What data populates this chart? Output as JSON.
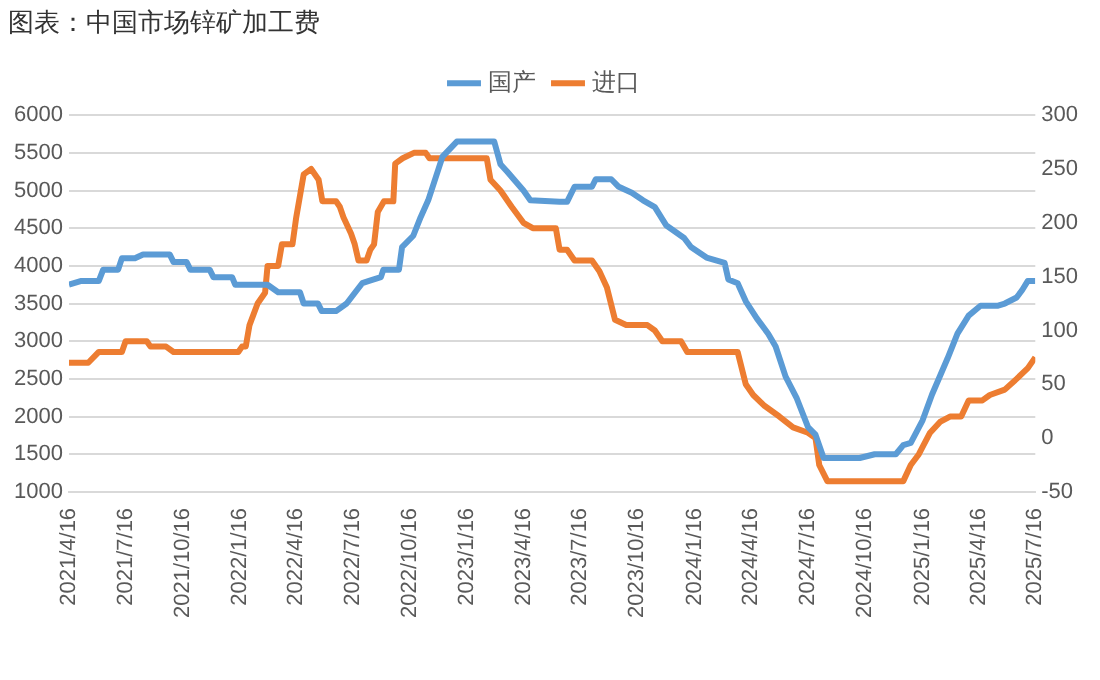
{
  "chart_data": {
    "type": "line",
    "title": "图表：中国市场锌矿加工费",
    "xlim": [
      "2021-04-16",
      "2025-07-16"
    ],
    "xticks": [
      {
        "value": "2021-04-16",
        "label": "2021/4/16"
      },
      {
        "value": "2021-07-16",
        "label": "2021/7/16"
      },
      {
        "value": "2021-10-16",
        "label": "2021/10/16"
      },
      {
        "value": "2022-01-16",
        "label": "2022/1/16"
      },
      {
        "value": "2022-04-16",
        "label": "2022/4/16"
      },
      {
        "value": "2022-07-16",
        "label": "2022/7/16"
      },
      {
        "value": "2022-10-16",
        "label": "2022/10/16"
      },
      {
        "value": "2023-01-16",
        "label": "2023/1/16"
      },
      {
        "value": "2023-04-16",
        "label": "2023/4/16"
      },
      {
        "value": "2023-07-16",
        "label": "2023/7/16"
      },
      {
        "value": "2023-10-16",
        "label": "2023/10/16"
      },
      {
        "value": "2024-01-16",
        "label": "2024/1/16"
      },
      {
        "value": "2024-04-16",
        "label": "2024/4/16"
      },
      {
        "value": "2024-07-16",
        "label": "2024/7/16"
      },
      {
        "value": "2024-10-16",
        "label": "2024/10/16"
      },
      {
        "value": "2025-01-16",
        "label": "2025/1/16"
      },
      {
        "value": "2025-04-16",
        "label": "2025/4/16"
      },
      {
        "value": "2025-07-16",
        "label": "2025/7/16"
      }
    ],
    "ylim": [
      1000,
      6000
    ],
    "yticks": [
      1000,
      1500,
      2000,
      2500,
      3000,
      3500,
      4000,
      4500,
      5000,
      5500,
      6000
    ],
    "y2lim": [
      -50,
      300
    ],
    "y2ticks": [
      -50,
      0,
      50,
      100,
      150,
      200,
      250,
      300
    ],
    "grid": "y",
    "legend": "top",
    "marker": "none",
    "line_style": "solid",
    "series": [
      {
        "name": "国产",
        "color": "#5b9bd5",
        "x": [
          "2021-04-16",
          "2021-05-06",
          "2021-06-03",
          "2021-06-10",
          "2021-07-04",
          "2021-07-10",
          "2021-07-31",
          "2021-08-13",
          "2021-09-25",
          "2021-10-01",
          "2021-10-22",
          "2021-10-28",
          "2021-11-28",
          "2021-12-04",
          "2022-01-03",
          "2022-01-08",
          "2022-03-01",
          "2022-03-18",
          "2022-04-22",
          "2022-04-28",
          "2022-05-21",
          "2022-05-27",
          "2022-06-19",
          "2022-07-06",
          "2022-07-18",
          "2022-07-31",
          "2022-08-11",
          "2022-08-30",
          "2022-09-03",
          "2022-09-28",
          "2022-10-03",
          "2022-10-21",
          "2022-11-02",
          "2022-11-14",
          "2022-12-07",
          "2022-12-30",
          "2023-02-28",
          "2023-03-10",
          "2023-03-21",
          "2023-04-16",
          "2023-04-27",
          "2023-06-13",
          "2023-06-25",
          "2023-07-07",
          "2023-08-04",
          "2023-08-10",
          "2023-09-04",
          "2023-09-16",
          "2023-10-07",
          "2023-10-25",
          "2023-11-13",
          "2023-12-01",
          "2023-12-30",
          "2024-01-10",
          "2024-02-04",
          "2024-03-04",
          "2024-03-10",
          "2024-03-25",
          "2024-04-07",
          "2024-04-25",
          "2024-05-13",
          "2024-05-25",
          "2024-06-10",
          "2024-06-28",
          "2024-07-16",
          "2024-07-28",
          "2024-08-10",
          "2024-10-07",
          "2024-10-31",
          "2024-12-04",
          "2024-12-16",
          "2024-12-28",
          "2025-01-16",
          "2025-01-31",
          "2025-02-25",
          "2025-03-13",
          "2025-03-31",
          "2025-04-19",
          "2025-05-16",
          "2025-05-28",
          "2025-06-16",
          "2025-06-25",
          "2025-07-04",
          "2025-07-16"
        ],
        "values": [
          3750,
          3800,
          3800,
          3950,
          3950,
          4100,
          4100,
          4150,
          4150,
          4050,
          4050,
          3950,
          3950,
          3850,
          3850,
          3750,
          3750,
          3650,
          3650,
          3500,
          3500,
          3400,
          3400,
          3500,
          3630,
          3770,
          3800,
          3850,
          3950,
          3950,
          4250,
          4400,
          4650,
          4870,
          5450,
          5650,
          5650,
          5350,
          5250,
          5000,
          4870,
          4850,
          4850,
          5050,
          5050,
          5150,
          5150,
          5050,
          4970,
          4870,
          4780,
          4540,
          4370,
          4250,
          4110,
          4040,
          3820,
          3770,
          3530,
          3300,
          3100,
          2930,
          2530,
          2240,
          1860,
          1760,
          1450,
          1450,
          1500,
          1500,
          1620,
          1650,
          1950,
          2290,
          2770,
          3100,
          3340,
          3470,
          3470,
          3500,
          3580,
          3680,
          3800,
          3800
        ]
      },
      {
        "name": "进口",
        "color": "#ed7d31",
        "axis": "y2",
        "x": [
          "2021-04-16",
          "2021-05-17",
          "2021-06-03",
          "2021-07-10",
          "2021-07-16",
          "2021-08-19",
          "2021-08-25",
          "2021-09-19",
          "2021-10-01",
          "2022-01-13",
          "2022-01-19",
          "2022-01-25",
          "2022-01-31",
          "2022-02-13",
          "2022-02-25",
          "2022-03-01",
          "2022-03-18",
          "2022-03-24",
          "2022-04-10",
          "2022-04-16",
          "2022-04-28",
          "2022-05-10",
          "2022-05-22",
          "2022-05-28",
          "2022-06-19",
          "2022-06-25",
          "2022-07-01",
          "2022-07-13",
          "2022-07-19",
          "2022-07-25",
          "2022-08-07",
          "2022-08-13",
          "2022-08-19",
          "2022-08-25",
          "2022-09-04",
          "2022-09-19",
          "2022-09-22",
          "2022-10-04",
          "2022-10-22",
          "2022-11-10",
          "2022-11-16",
          "2023-02-16",
          "2023-02-22",
          "2023-03-10",
          "2023-03-28",
          "2023-04-16",
          "2023-05-01",
          "2023-06-07",
          "2023-06-13",
          "2023-06-25",
          "2023-07-07",
          "2023-08-04",
          "2023-08-16",
          "2023-08-28",
          "2023-09-10",
          "2023-09-28",
          "2023-11-01",
          "2023-11-13",
          "2023-11-25",
          "2023-12-25",
          "2024-01-04",
          "2024-03-25",
          "2024-04-07",
          "2024-04-19",
          "2024-05-07",
          "2024-05-31",
          "2024-06-22",
          "2024-07-16",
          "2024-07-28",
          "2024-08-03",
          "2024-08-16",
          "2024-12-16",
          "2024-12-28",
          "2025-01-10",
          "2025-01-28",
          "2025-02-13",
          "2025-03-01",
          "2025-03-19",
          "2025-03-31",
          "2025-04-22",
          "2025-05-04",
          "2025-05-28",
          "2025-06-16",
          "2025-07-04",
          "2025-07-16"
        ],
        "values": [
          70,
          70,
          80,
          80,
          90,
          90,
          85,
          85,
          80,
          80,
          85,
          85,
          105,
          125,
          135,
          160,
          160,
          180,
          180,
          205,
          245,
          250,
          240,
          220,
          220,
          215,
          205,
          190,
          180,
          165,
          165,
          175,
          180,
          210,
          220,
          220,
          255,
          260,
          265,
          265,
          260,
          260,
          240,
          230,
          215,
          200,
          195,
          195,
          175,
          175,
          165,
          165,
          155,
          140,
          110,
          105,
          105,
          100,
          90,
          90,
          80,
          80,
          50,
          40,
          30,
          20,
          10,
          5,
          0,
          -25,
          -40,
          -40,
          -25,
          -15,
          5,
          15,
          20,
          20,
          35,
          35,
          40,
          45,
          55,
          65,
          75
        ]
      }
    ]
  }
}
